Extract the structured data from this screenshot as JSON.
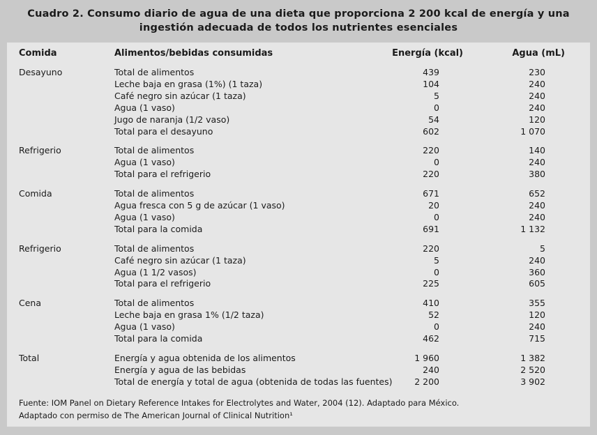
{
  "title_line1": "Cuadro 2. Consumo diario de agua de una dieta que proporciona 2 200 kcal de energía y una",
  "title_line2": "ingestión adecuada de todos los nutrientes esenciales",
  "headers": {
    "meal": "Comida",
    "food": "Alimentos/bebidas consumidas",
    "energy": "Energía (kcal)",
    "water": "Agua (mL)"
  },
  "groups": [
    {
      "meal": "Desayuno",
      "rows": [
        {
          "item": "Total de alimentos",
          "energy": "439",
          "water": "230"
        },
        {
          "item": "Leche baja en grasa (1%) (1 taza)",
          "energy": "104",
          "water": "240"
        },
        {
          "item": "Café negro sin azúcar (1 taza)",
          "energy": "5",
          "water": "240"
        },
        {
          "item": "Agua (1 vaso)",
          "energy": "0",
          "water": "240"
        },
        {
          "item": "Jugo de naranja (1/2 vaso)",
          "energy": "54",
          "water": "120"
        },
        {
          "item": "Total para el desayuno",
          "energy": "602",
          "water": "1 070"
        }
      ]
    },
    {
      "meal": "Refrigerio",
      "rows": [
        {
          "item": "Total de alimentos",
          "energy": "220",
          "water": "140"
        },
        {
          "item": "Agua (1 vaso)",
          "energy": "0",
          "water": "240"
        },
        {
          "item": "Total para el refrigerio",
          "energy": "220",
          "water": "380"
        }
      ]
    },
    {
      "meal": "Comida",
      "rows": [
        {
          "item": "Total de alimentos",
          "energy": "671",
          "water": "652"
        },
        {
          "item": "Agua fresca con 5 g de azúcar (1 vaso)",
          "energy": "20",
          "water": "240"
        },
        {
          "item": "Agua (1 vaso)",
          "energy": "0",
          "water": "240"
        },
        {
          "item": "Total para la comida",
          "energy": "691",
          "water": "1 132"
        }
      ]
    },
    {
      "meal": "Refrigerio",
      "rows": [
        {
          "item": "Total de alimentos",
          "energy": "220",
          "water": "5"
        },
        {
          "item": "Café negro sin azúcar (1 taza)",
          "energy": "5",
          "water": "240"
        },
        {
          "item": "Agua (1 1/2 vasos)",
          "energy": "0",
          "water": "360"
        },
        {
          "item": "Total para el refrigerio",
          "energy": "225",
          "water": "605"
        }
      ]
    },
    {
      "meal": "Cena",
      "rows": [
        {
          "item": "Total de alimentos",
          "energy": "410",
          "water": "355"
        },
        {
          "item": "Leche baja en grasa 1% (1/2 taza)",
          "energy": "52",
          "water": "120"
        },
        {
          "item": "Agua (1 vaso)",
          "energy": "0",
          "water": "240"
        },
        {
          "item": "Total para la comida",
          "energy": "462",
          "water": "715"
        }
      ]
    },
    {
      "meal": "Total",
      "rows": [
        {
          "item": "Energía y agua obtenida de los alimentos",
          "energy": "1 960",
          "water": "1 382"
        },
        {
          "item": "Energía y agua de las bebidas",
          "energy": "240",
          "water": "2 520"
        },
        {
          "item": "Total de energía y total de agua (obtenida de todas las fuentes)",
          "energy": "2 200",
          "water": "3 902"
        }
      ]
    }
  ],
  "source_line1": "Fuente: IOM Panel on Dietary Reference Intakes for Electrolytes and Water, 2004 (12). Adaptado para México.",
  "source_line2": "Adaptado con permiso de The American Journal of Clinical Nutrition¹"
}
